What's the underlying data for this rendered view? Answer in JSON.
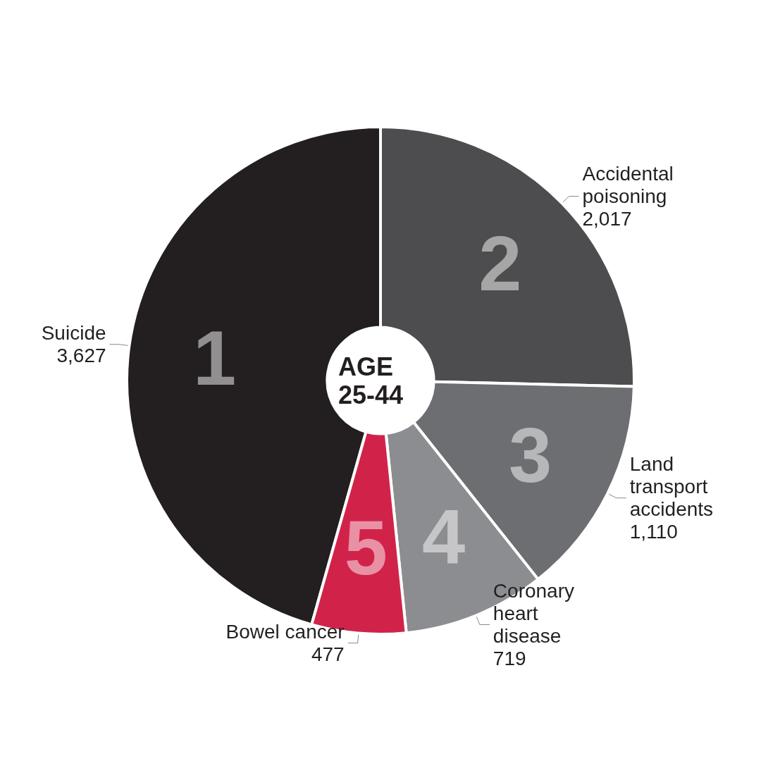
{
  "chart_data": {
    "type": "donut",
    "title": "AGE 25-44",
    "categories": [
      "Suicide",
      "Accidental poisoning",
      "Land transport accidents",
      "Coronary heart disease",
      "Bowel cancer"
    ],
    "values": [
      3627,
      2017,
      1110,
      719,
      477
    ],
    "value_labels": [
      "3,627",
      "2,017",
      "1,110",
      "719",
      "477"
    ],
    "colors": [
      "#231f20",
      "#4d4d4f",
      "#6d6e71",
      "#8c8d90",
      "#d1234a"
    ],
    "annotations": [
      "1",
      "2",
      "3",
      "4",
      "5"
    ],
    "legend": false
  }
}
